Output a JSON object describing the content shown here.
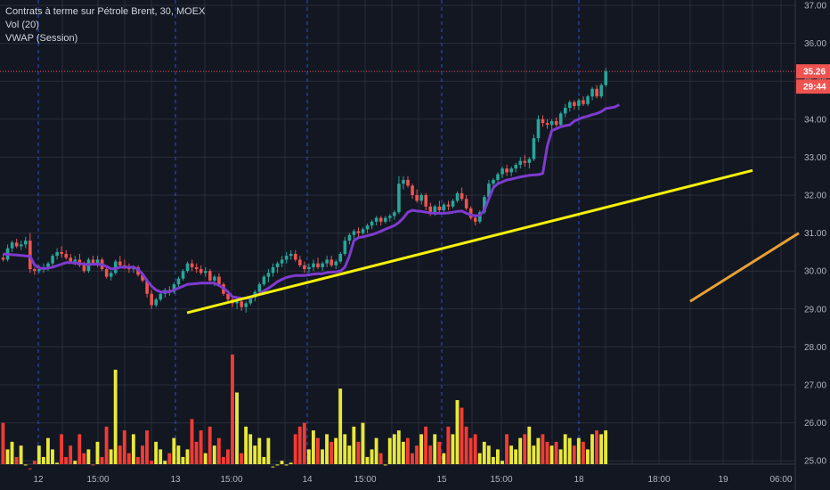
{
  "header": {
    "title": "Contrats à terme sur Pétrole Brent, 30, MOEX",
    "indicators": [
      "Vol (20)",
      "VWAP (Session)"
    ]
  },
  "colors": {
    "background": "#131722",
    "grid": "#2a2e39",
    "session_line": "#2962ff",
    "up": "#26a69a",
    "down": "#ef5350",
    "vol_up": "#e8e83a",
    "vol_down": "#f23b34",
    "vwap": "#7e3bd0",
    "trendline_1": "#f5f10a",
    "trendline_2": "#e8a135",
    "price_line": "#ef5350"
  },
  "price_tag": {
    "price": "35.26",
    "countdown": "29:44"
  },
  "chart_data": {
    "type": "candlestick",
    "price_axis": {
      "ticks": [
        "37.00",
        "36.00",
        "35.00",
        "34.00",
        "33.00",
        "32.00",
        "31.00",
        "30.00",
        "29.00",
        "28.00",
        "27.00",
        "26.00",
        "25.00"
      ],
      "range": [
        24.8,
        37.2
      ]
    },
    "time_axis": {
      "ticks": [
        "12",
        "15:00",
        "13",
        "15:00",
        "14",
        "15:00",
        "15",
        "15:00",
        "18",
        "18:00",
        "19",
        "06:00"
      ]
    },
    "last_price": 35.26,
    "candles": [
      [
        30.35,
        30.45,
        30.25,
        30.3
      ],
      [
        30.3,
        30.7,
        30.25,
        30.6
      ],
      [
        30.6,
        30.8,
        30.5,
        30.75
      ],
      [
        30.75,
        30.85,
        30.6,
        30.65
      ],
      [
        30.65,
        30.8,
        30.55,
        30.7
      ],
      [
        30.7,
        30.9,
        30.6,
        30.8
      ],
      [
        30.8,
        31.0,
        29.95,
        30.05
      ],
      [
        30.05,
        30.1,
        29.9,
        30.0
      ],
      [
        30.0,
        30.15,
        29.95,
        30.05
      ],
      [
        30.05,
        30.2,
        29.95,
        30.1
      ],
      [
        30.1,
        30.25,
        30.0,
        30.2
      ],
      [
        30.2,
        30.45,
        30.1,
        30.4
      ],
      [
        30.4,
        30.6,
        30.3,
        30.5
      ],
      [
        30.5,
        30.65,
        30.35,
        30.45
      ],
      [
        30.45,
        30.55,
        30.3,
        30.35
      ],
      [
        30.35,
        30.45,
        30.2,
        30.25
      ],
      [
        30.25,
        30.4,
        30.15,
        30.3
      ],
      [
        30.3,
        30.45,
        30.1,
        30.15
      ],
      [
        30.15,
        30.25,
        29.95,
        30.0
      ],
      [
        30.0,
        30.35,
        29.95,
        30.3
      ],
      [
        30.3,
        30.4,
        30.15,
        30.2
      ],
      [
        30.2,
        30.4,
        30.1,
        30.3
      ],
      [
        30.3,
        30.35,
        30.0,
        30.05
      ],
      [
        30.05,
        30.1,
        29.8,
        29.85
      ],
      [
        29.85,
        30.0,
        29.75,
        29.95
      ],
      [
        29.95,
        30.3,
        29.9,
        30.25
      ],
      [
        30.25,
        30.4,
        30.1,
        30.15
      ],
      [
        30.15,
        30.3,
        30.05,
        30.1
      ],
      [
        30.1,
        30.2,
        29.95,
        30.05
      ],
      [
        30.05,
        30.15,
        29.95,
        30.1
      ],
      [
        30.1,
        30.15,
        29.85,
        29.9
      ],
      [
        29.9,
        29.95,
        29.7,
        29.75
      ],
      [
        29.75,
        29.8,
        29.3,
        29.4
      ],
      [
        29.4,
        29.5,
        29.0,
        29.1
      ],
      [
        29.1,
        29.3,
        29.05,
        29.25
      ],
      [
        29.25,
        29.45,
        29.2,
        29.4
      ],
      [
        29.4,
        29.55,
        29.3,
        29.5
      ],
      [
        29.5,
        29.6,
        29.35,
        29.45
      ],
      [
        29.45,
        29.7,
        29.4,
        29.65
      ],
      [
        29.65,
        29.85,
        29.55,
        29.8
      ],
      [
        29.8,
        30.05,
        29.75,
        30.0
      ],
      [
        30.0,
        30.25,
        29.95,
        30.2
      ],
      [
        30.2,
        30.3,
        30.0,
        30.1
      ],
      [
        30.1,
        30.2,
        29.95,
        30.05
      ],
      [
        30.05,
        30.15,
        29.9,
        29.95
      ],
      [
        29.95,
        30.1,
        29.85,
        30.0
      ],
      [
        30.0,
        30.05,
        29.7,
        29.75
      ],
      [
        29.75,
        29.9,
        29.6,
        29.85
      ],
      [
        29.85,
        29.95,
        29.6,
        29.65
      ],
      [
        29.65,
        29.7,
        29.35,
        29.4
      ],
      [
        29.4,
        29.5,
        29.15,
        29.25
      ],
      [
        29.25,
        29.35,
        29.05,
        29.15
      ],
      [
        29.15,
        29.25,
        29.0,
        29.2
      ],
      [
        29.2,
        29.3,
        28.95,
        29.05
      ],
      [
        29.05,
        29.2,
        28.9,
        29.15
      ],
      [
        29.15,
        29.35,
        29.1,
        29.3
      ],
      [
        29.3,
        29.5,
        29.2,
        29.45
      ],
      [
        29.45,
        29.7,
        29.4,
        29.65
      ],
      [
        29.65,
        29.9,
        29.6,
        29.85
      ],
      [
        29.85,
        30.05,
        29.7,
        29.95
      ],
      [
        29.95,
        30.2,
        29.85,
        30.1
      ],
      [
        30.1,
        30.25,
        29.95,
        30.2
      ],
      [
        30.2,
        30.4,
        30.1,
        30.3
      ],
      [
        30.3,
        30.5,
        30.2,
        30.4
      ],
      [
        30.4,
        30.55,
        30.3,
        30.45
      ],
      [
        30.45,
        30.55,
        30.25,
        30.3
      ],
      [
        30.3,
        30.4,
        30.1,
        30.15
      ],
      [
        30.15,
        30.25,
        29.95,
        30.05
      ],
      [
        30.05,
        30.2,
        29.95,
        30.1
      ],
      [
        30.1,
        30.3,
        30.0,
        30.2
      ],
      [
        30.2,
        30.35,
        30.05,
        30.1
      ],
      [
        30.1,
        30.25,
        30.0,
        30.2
      ],
      [
        30.2,
        30.4,
        30.1,
        30.3
      ],
      [
        30.3,
        30.4,
        30.1,
        30.15
      ],
      [
        30.15,
        30.3,
        30.05,
        30.25
      ],
      [
        30.25,
        30.5,
        30.2,
        30.45
      ],
      [
        30.45,
        30.9,
        30.4,
        30.8
      ],
      [
        30.8,
        31.0,
        30.7,
        30.95
      ],
      [
        30.95,
        31.1,
        30.85,
        31.05
      ],
      [
        31.05,
        31.15,
        30.9,
        31.0
      ],
      [
        31.0,
        31.15,
        30.95,
        31.1
      ],
      [
        31.1,
        31.25,
        31.0,
        31.2
      ],
      [
        31.2,
        31.35,
        31.1,
        31.3
      ],
      [
        31.3,
        31.45,
        31.2,
        31.4
      ],
      [
        31.4,
        31.45,
        31.2,
        31.3
      ],
      [
        31.3,
        31.45,
        31.25,
        31.4
      ],
      [
        31.4,
        31.5,
        31.3,
        31.45
      ],
      [
        31.45,
        31.6,
        31.35,
        31.55
      ],
      [
        31.55,
        32.5,
        31.5,
        32.3
      ],
      [
        32.3,
        32.5,
        32.15,
        32.4
      ],
      [
        32.4,
        32.5,
        32.2,
        32.25
      ],
      [
        32.25,
        32.3,
        31.9,
        32.0
      ],
      [
        32.0,
        32.15,
        31.8,
        31.85
      ],
      [
        31.85,
        32.05,
        31.75,
        32.0
      ],
      [
        32.0,
        32.05,
        31.6,
        31.7
      ],
      [
        31.7,
        31.8,
        31.45,
        31.5
      ],
      [
        31.5,
        31.75,
        31.45,
        31.7
      ],
      [
        31.7,
        31.85,
        31.55,
        31.6
      ],
      [
        31.6,
        31.8,
        31.5,
        31.75
      ],
      [
        31.75,
        31.85,
        31.6,
        31.7
      ],
      [
        31.7,
        31.9,
        31.65,
        31.85
      ],
      [
        31.85,
        32.1,
        31.8,
        32.05
      ],
      [
        32.05,
        32.2,
        31.85,
        31.9
      ],
      [
        31.9,
        32.0,
        31.6,
        31.65
      ],
      [
        31.65,
        31.7,
        31.35,
        31.4
      ],
      [
        31.4,
        31.5,
        31.2,
        31.3
      ],
      [
        31.3,
        31.6,
        31.25,
        31.55
      ],
      [
        31.55,
        32.0,
        31.5,
        31.95
      ],
      [
        31.95,
        32.4,
        31.9,
        32.3
      ],
      [
        32.3,
        32.45,
        32.15,
        32.4
      ],
      [
        32.4,
        32.6,
        32.3,
        32.55
      ],
      [
        32.55,
        32.75,
        32.45,
        32.7
      ],
      [
        32.7,
        32.8,
        32.5,
        32.6
      ],
      [
        32.6,
        32.75,
        32.5,
        32.7
      ],
      [
        32.7,
        32.85,
        32.6,
        32.8
      ],
      [
        32.8,
        33.0,
        32.7,
        32.9
      ],
      [
        32.9,
        33.05,
        32.75,
        32.85
      ],
      [
        32.85,
        33.0,
        32.7,
        32.95
      ],
      [
        32.95,
        33.6,
        32.9,
        33.5
      ],
      [
        33.5,
        34.1,
        33.4,
        34.0
      ],
      [
        34.0,
        34.1,
        33.8,
        33.9
      ],
      [
        33.9,
        34.0,
        33.75,
        33.85
      ],
      [
        33.85,
        34.0,
        33.7,
        33.95
      ],
      [
        33.95,
        34.05,
        33.8,
        33.85
      ],
      [
        33.85,
        34.2,
        33.8,
        34.15
      ],
      [
        34.15,
        34.4,
        34.05,
        34.3
      ],
      [
        34.3,
        34.5,
        34.2,
        34.45
      ],
      [
        34.45,
        34.5,
        34.25,
        34.35
      ],
      [
        34.35,
        34.55,
        34.25,
        34.5
      ],
      [
        34.5,
        34.6,
        34.35,
        34.4
      ],
      [
        34.4,
        34.65,
        34.35,
        34.6
      ],
      [
        34.6,
        34.85,
        34.5,
        34.8
      ],
      [
        34.8,
        34.9,
        34.55,
        34.6
      ],
      [
        34.6,
        34.95,
        34.55,
        34.9
      ],
      [
        34.9,
        35.35,
        34.85,
        35.26
      ]
    ],
    "vwap": [
      30.45,
      30.44,
      30.43,
      30.42,
      30.41,
      30.4,
      30.39,
      30.16,
      30.08,
      30.06,
      30.08,
      30.1,
      30.14,
      30.18,
      30.22,
      30.22,
      30.21,
      30.2,
      30.18,
      30.17,
      30.18,
      30.18,
      30.17,
      30.12,
      30.06,
      30.06,
      30.1,
      30.1,
      30.1,
      30.1,
      30.05,
      29.92,
      29.75,
      29.6,
      29.5,
      29.45,
      29.45,
      29.45,
      29.5,
      29.55,
      29.6,
      29.65,
      29.66,
      29.67,
      29.68,
      29.68,
      29.68,
      29.68,
      29.62,
      29.55,
      29.45,
      29.32,
      29.3,
      29.28,
      29.28,
      29.3,
      29.35,
      29.4,
      29.48,
      29.55,
      29.63,
      29.72,
      29.78,
      29.83,
      29.86,
      29.88,
      29.88,
      29.88,
      29.9,
      29.92,
      29.93,
      29.93,
      29.96,
      29.97,
      29.98,
      30.0,
      30.1,
      30.4,
      30.8,
      30.88,
      30.9,
      30.93,
      30.96,
      31.0,
      31.05,
      31.1,
      31.15,
      31.2,
      31.28,
      31.4,
      31.55,
      31.6,
      31.58,
      31.57,
      31.55,
      31.53,
      31.52,
      31.52,
      31.52,
      31.53,
      31.55,
      31.57,
      31.58,
      31.52,
      31.48,
      31.45,
      31.47,
      31.6,
      31.9,
      32.2,
      32.3,
      32.35,
      32.4,
      32.42,
      32.45,
      32.48,
      32.5,
      32.52,
      32.53,
      32.54,
      32.57,
      33.3,
      33.7,
      33.75,
      33.8,
      33.83,
      33.85,
      33.95,
      34.0,
      34.05,
      34.08,
      34.12,
      34.15,
      34.2,
      34.28,
      34.3,
      34.32,
      34.38
    ],
    "volume": [
      26,
      25.3,
      25.5,
      25.1,
      25.4,
      24.9,
      24.8,
      25,
      25.4,
      25.1,
      25.6,
      25.3,
      24.95,
      25.7,
      25.1,
      25.4,
      25,
      25.7,
      25.2,
      25.3,
      24.9,
      25.5,
      25.1,
      25.9,
      25.3,
      27.4,
      25.4,
      25.8,
      25.2,
      25.7,
      25.1,
      25.4,
      25.8,
      25,
      25.5,
      25.3,
      25,
      25.2,
      25.6,
      25.4,
      25.1,
      25.3,
      26.1,
      25.5,
      25.8,
      25.2,
      25.9,
      25.4,
      25.6,
      25.1,
      25.3,
      27.8,
      26.8,
      25.2,
      25.9,
      25.7,
      25.4,
      25.6,
      25.1,
      25.6,
      24.85,
      24.9,
      25,
      24.9,
      24.95,
      25.7,
      25.9,
      26,
      25.3,
      25.8,
      25.6,
      25.3,
      25.7,
      25.5,
      25.6,
      26.9,
      25.7,
      25.4,
      25.9,
      25.5,
      26,
      25.1,
      25.3,
      25.6,
      25.2,
      24.9,
      25.6,
      25.7,
      25.8,
      25.5,
      25.6,
      25.2,
      25.4,
      25.7,
      25.9,
      25.4,
      25.7,
      25.5,
      25.2,
      25.9,
      25.7,
      26.6,
      26.4,
      25.9,
      25.6,
      25.7,
      25.2,
      25.5,
      25.4,
      25.1,
      25.3,
      25,
      25.7,
      25.4,
      25.3,
      25.6,
      25.7,
      25.9,
      25.4,
      25.6,
      25.7,
      25.5,
      25.4,
      25.5,
      25.3,
      25.7,
      25.6,
      25.4,
      25.6,
      25.5,
      25.3,
      25.7,
      25.8,
      25.7,
      25.8
    ],
    "trendlines": [
      {
        "from": [
          31,
          28.9
        ],
        "to": [
          160,
          32.65
        ]
      },
      {
        "from": [
          146,
          29.2
        ],
        "to": [
          181,
          31.0
        ]
      }
    ]
  }
}
